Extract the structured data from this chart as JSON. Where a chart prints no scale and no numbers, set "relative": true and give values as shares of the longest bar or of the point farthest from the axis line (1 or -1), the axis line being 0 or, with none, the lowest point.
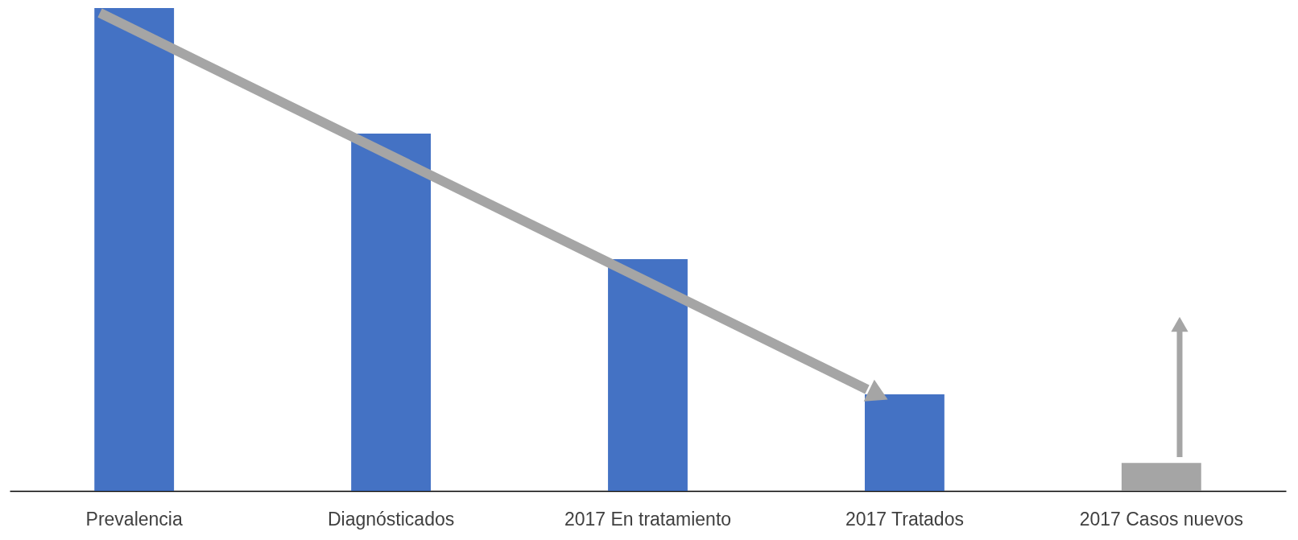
{
  "chart_data": {
    "type": "bar",
    "relative": true,
    "categories": [
      "Prevalencia",
      "Diagnósticados",
      "2017 En tratamiento",
      "2017 Tratados",
      "2017 Casos nuevos"
    ],
    "values": [
      1,
      0.74,
      0.48,
      0.2,
      0.058
    ],
    "colors": [
      "#4472c4",
      "#4472c4",
      "#4472c4",
      "#4472c4",
      "#a5a5a5"
    ],
    "grid": false
  }
}
